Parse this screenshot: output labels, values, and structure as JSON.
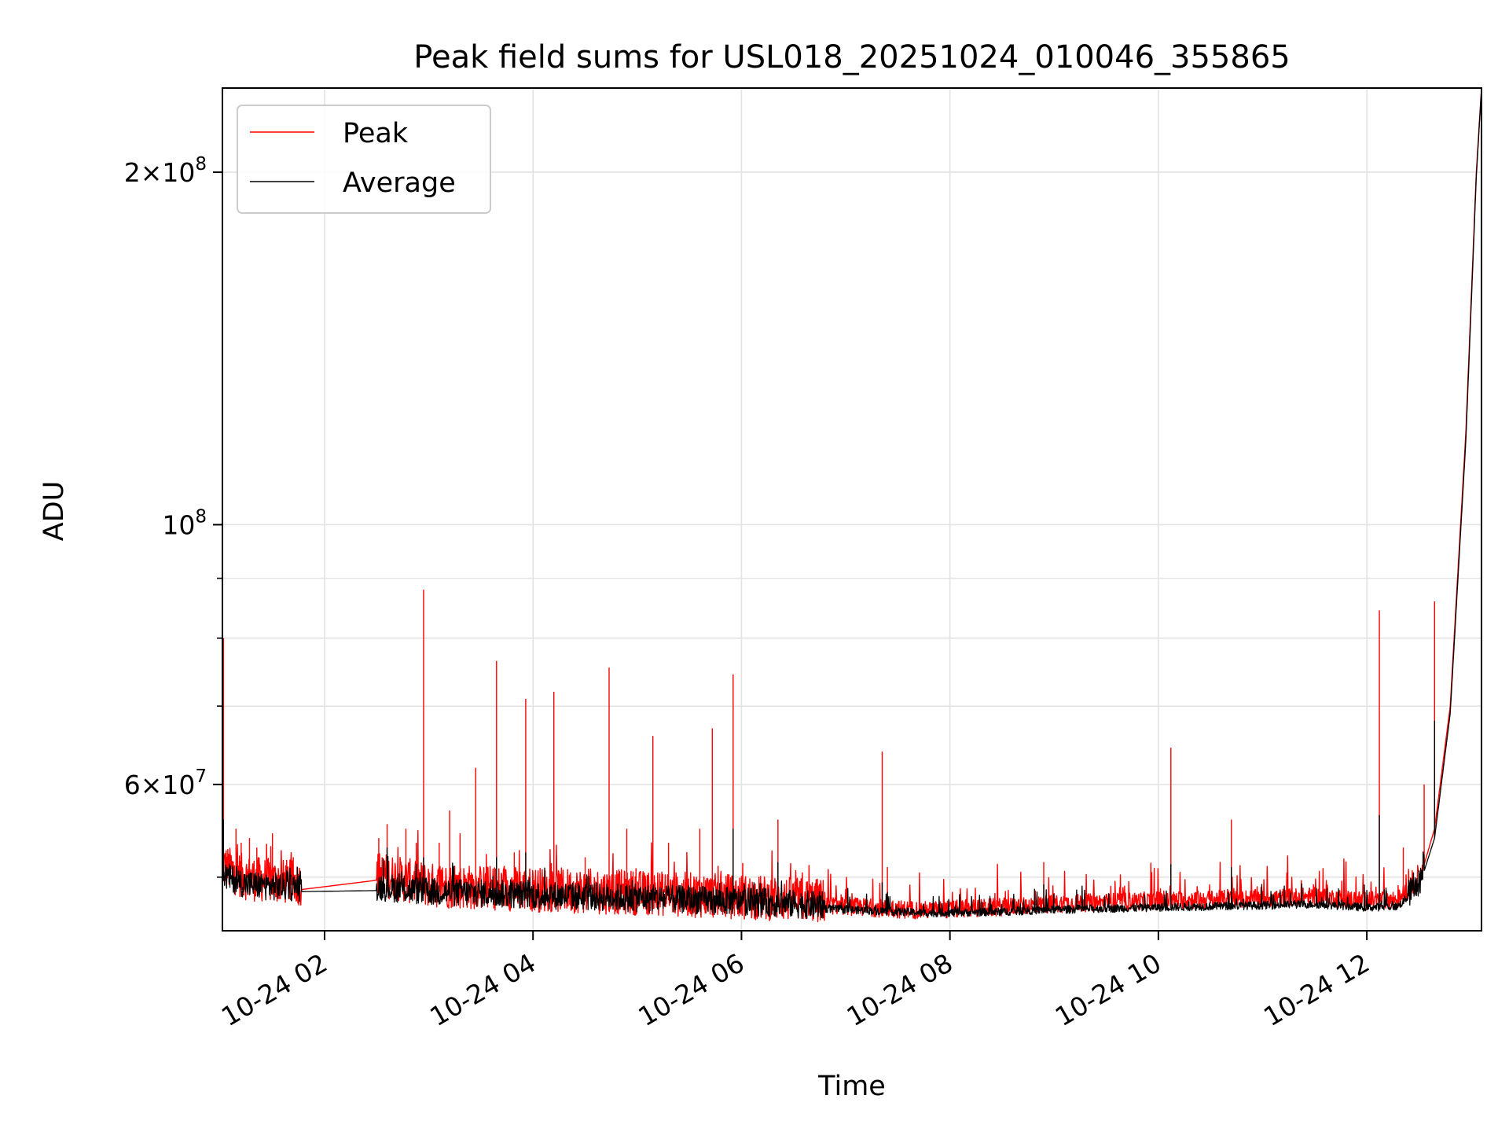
{
  "chart_data": {
    "type": "line",
    "title": "Peak field sums for USL018_20251024_010046_355865",
    "xlabel": "Time",
    "ylabel": "ADU",
    "yscale": "log",
    "xlim_hours": [
      1.02,
      13.1
    ],
    "ylim": [
      45000000,
      236000000
    ],
    "grid": true,
    "legend_position": "upper left",
    "x_ticks": [
      {
        "hour": 2,
        "label": "10-24 02"
      },
      {
        "hour": 4,
        "label": "10-24 04"
      },
      {
        "hour": 6,
        "label": "10-24 06"
      },
      {
        "hour": 8,
        "label": "10-24 08"
      },
      {
        "hour": 10,
        "label": "10-24 10"
      },
      {
        "hour": 12,
        "label": "10-24 12"
      }
    ],
    "y_major_ticks": [
      {
        "value": 100000000,
        "base": "10",
        "exp": "8",
        "coef": ""
      },
      {
        "value": 60000000,
        "base": "10",
        "exp": "7",
        "coef": "6"
      },
      {
        "value": 200000000,
        "base": "10",
        "exp": "8",
        "coef": "2"
      }
    ],
    "y_minor_ticks": [
      50000000,
      70000000,
      80000000,
      90000000
    ],
    "series": [
      {
        "name": "Peak",
        "color": "#ff0000",
        "baseline": [
          [
            1.02,
            50500000
          ],
          [
            1.25,
            49300000
          ],
          [
            1.5,
            49000000
          ],
          [
            1.78,
            48800000
          ],
          [
            2.5,
            49700000
          ],
          [
            3.0,
            48600000
          ],
          [
            4.0,
            48200000
          ],
          [
            5.0,
            47900000
          ],
          [
            6.0,
            47500000
          ],
          [
            6.8,
            47100000
          ],
          [
            7.5,
            46700000
          ],
          [
            7.8,
            46600000
          ],
          [
            8.5,
            46900000
          ],
          [
            9.0,
            47200000
          ],
          [
            10.0,
            47500000
          ],
          [
            11.0,
            47700000
          ],
          [
            11.5,
            47900000
          ],
          [
            12.0,
            47500000
          ],
          [
            12.3,
            47600000
          ],
          [
            12.5,
            49500000
          ],
          [
            12.65,
            55000000
          ],
          [
            12.8,
            70000000
          ],
          [
            12.95,
            120000000
          ],
          [
            13.05,
            200000000
          ],
          [
            13.1,
            236000000
          ]
        ],
        "spikes": [
          [
            1.03,
            80000000
          ],
          [
            1.15,
            55000000
          ],
          [
            1.2,
            53500000
          ],
          [
            1.28,
            54000000
          ],
          [
            1.35,
            53000000
          ],
          [
            1.5,
            54500000
          ],
          [
            1.7,
            52000000
          ],
          [
            2.52,
            54000000
          ],
          [
            2.6,
            55500000
          ],
          [
            2.78,
            55000000
          ],
          [
            2.88,
            53500000
          ],
          [
            2.95,
            88000000
          ],
          [
            3.1,
            53500000
          ],
          [
            3.2,
            57000000
          ],
          [
            3.3,
            54500000
          ],
          [
            3.45,
            62000000
          ],
          [
            3.65,
            76500000
          ],
          [
            3.82,
            52500000
          ],
          [
            3.93,
            71000000
          ],
          [
            4.2,
            72000000
          ],
          [
            4.5,
            52000000
          ],
          [
            4.73,
            75500000
          ],
          [
            4.9,
            55000000
          ],
          [
            5.15,
            66000000
          ],
          [
            5.3,
            53500000
          ],
          [
            5.6,
            55000000
          ],
          [
            5.72,
            67000000
          ],
          [
            5.92,
            74500000
          ],
          [
            6.35,
            56000000
          ],
          [
            7.35,
            64000000
          ],
          [
            7.4,
            51000000
          ],
          [
            8.9,
            51500000
          ],
          [
            10.12,
            64500000
          ],
          [
            10.7,
            56000000
          ],
          [
            12.12,
            84500000
          ],
          [
            12.35,
            53000000
          ],
          [
            12.55,
            60000000
          ],
          [
            12.65,
            86000000
          ]
        ]
      },
      {
        "name": "Average",
        "color": "#000000",
        "baseline": [
          [
            1.02,
            49800000
          ],
          [
            1.25,
            48900000
          ],
          [
            1.5,
            48700000
          ],
          [
            1.78,
            48600000
          ],
          [
            2.5,
            48700000
          ],
          [
            3.0,
            48200000
          ],
          [
            4.0,
            47900000
          ],
          [
            5.0,
            47600000
          ],
          [
            6.0,
            47300000
          ],
          [
            6.8,
            46900000
          ],
          [
            7.5,
            46600000
          ],
          [
            7.8,
            46500000
          ],
          [
            8.5,
            46600000
          ],
          [
            9.0,
            46800000
          ],
          [
            10.0,
            47000000
          ],
          [
            11.0,
            47200000
          ],
          [
            11.5,
            47300000
          ],
          [
            12.0,
            47000000
          ],
          [
            12.3,
            47100000
          ],
          [
            12.5,
            49000000
          ],
          [
            12.65,
            54000000
          ],
          [
            12.8,
            69000000
          ],
          [
            12.95,
            118000000
          ],
          [
            13.05,
            198000000
          ],
          [
            13.1,
            236000000
          ]
        ],
        "spikes": [
          [
            1.03,
            56000000
          ],
          [
            2.6,
            53000000
          ],
          [
            2.95,
            52000000
          ],
          [
            3.65,
            52000000
          ],
          [
            3.93,
            52500000
          ],
          [
            5.92,
            55000000
          ],
          [
            6.35,
            51500000
          ],
          [
            7.35,
            49500000
          ],
          [
            8.9,
            49300000
          ],
          [
            10.12,
            51300000
          ],
          [
            10.7,
            51000000
          ],
          [
            12.12,
            56500000
          ],
          [
            12.65,
            68000000
          ]
        ]
      }
    ]
  }
}
